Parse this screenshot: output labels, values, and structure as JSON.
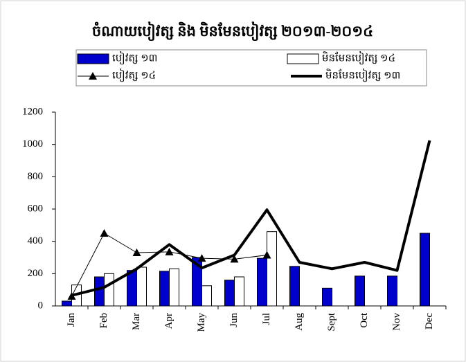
{
  "chart_data": {
    "type": "bar",
    "title": "ចំណាយបៀវត្ស និង មិនមែនបៀវត្ស ២០១៣-២០១៤",
    "categories": [
      "Jan",
      "Feb",
      "Mar",
      "Apr",
      "May",
      "Jun",
      "Jul",
      "Aug",
      "Sept",
      "Oct",
      "Nov",
      "Dec"
    ],
    "series": [
      {
        "name": "បៀវត្ស ១៣",
        "type": "bar",
        "color": "#0000cc",
        "values": [
          30,
          180,
          220,
          215,
          300,
          160,
          295,
          245,
          110,
          185,
          185,
          450
        ]
      },
      {
        "name": "មិនមែនបៀវត្ស ១៤",
        "type": "bar",
        "color": "#ffffff",
        "values": [
          130,
          200,
          240,
          230,
          125,
          180,
          460,
          null,
          null,
          null,
          null,
          null
        ]
      },
      {
        "name": "បៀវត្ស ១៤",
        "type": "line",
        "color": "#000000",
        "linewidth": 1,
        "marker": "triangle",
        "values": [
          60,
          450,
          330,
          335,
          295,
          290,
          315,
          null,
          null,
          null,
          null,
          null
        ]
      },
      {
        "name": "មិនមែនបៀវត្ស ១៣",
        "type": "line",
        "color": "#000000",
        "linewidth": 4,
        "values": [
          65,
          115,
          230,
          380,
          235,
          315,
          595,
          270,
          230,
          270,
          220,
          1025
        ]
      }
    ],
    "ylim": [
      0,
      1200
    ],
    "yticks": [
      0,
      200,
      400,
      600,
      800,
      1000,
      1200
    ],
    "grid": false
  }
}
